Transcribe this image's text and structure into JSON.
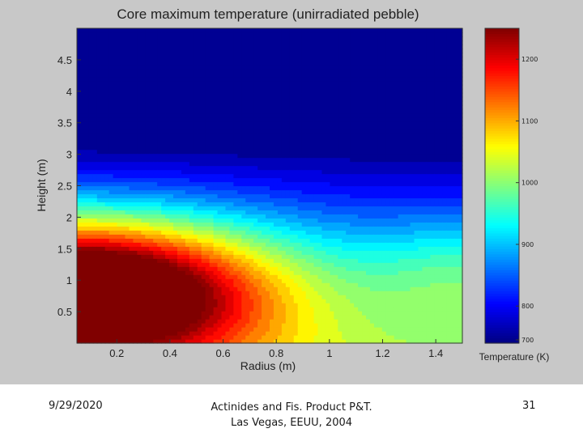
{
  "chart_data": {
    "type": "heatmap",
    "subtype": "filled-contour",
    "title": "Core maximum temperature (unirradiated pebble)",
    "xlabel": "Radius (m)",
    "ylabel": "Height (m)",
    "xlim": [
      0.05,
      1.5
    ],
    "ylim": [
      0.0,
      5.0
    ],
    "x_ticks": [
      0.2,
      0.4,
      0.6,
      0.8,
      1,
      1.2,
      1.4
    ],
    "x_tick_labels": [
      "0.2",
      "0.4",
      "0.6",
      "0.8",
      "1",
      "1.2",
      "1.4"
    ],
    "y_ticks": [
      0.5,
      1,
      1.5,
      2,
      2.5,
      3,
      3.5,
      4,
      4.5
    ],
    "y_tick_labels": [
      "0.5",
      "1",
      "1.5",
      "2",
      "2.5",
      "3",
      "3.5",
      "4",
      "4.5"
    ],
    "hotspot": {
      "radius": 0.1,
      "height": 0.85,
      "value": 1245
    },
    "colorbar": {
      "label": "Temperature (K)",
      "range": [
        740,
        1250
      ],
      "ticks": [
        700,
        800,
        900,
        1000,
        1100,
        1200
      ],
      "tick_labels": [
        "700",
        "800",
        "900",
        "1000",
        "1100",
        "1200"
      ],
      "colormap": "jet"
    },
    "grid": false,
    "legend": "none"
  },
  "footer": {
    "date": "9/29/2020",
    "line1": "Actinides and Fis. Product P&T.",
    "line2": "Las Vegas, EEUU, 2004",
    "page": "31"
  },
  "colors": {
    "panel_background": "#c8c8c8",
    "page_background": "#ffffff"
  }
}
